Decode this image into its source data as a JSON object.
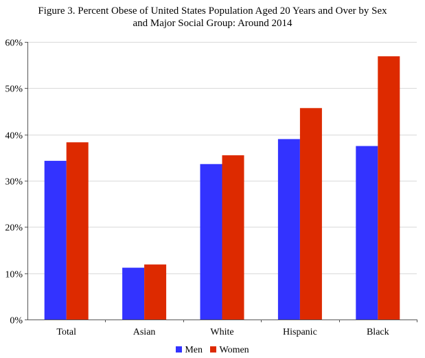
{
  "chart_data": {
    "type": "bar",
    "title_lines": [
      "Figure 3. Percent Obese of United States Population Aged 20 Years and Over by Sex",
      "and Major Social Group: Around 2014"
    ],
    "categories": [
      "Total",
      "Asian",
      "White",
      "Hispanic",
      "Black"
    ],
    "series": [
      {
        "name": "Men",
        "color": "#3333ff",
        "values": [
          34.3,
          11.2,
          33.6,
          39.0,
          37.5
        ]
      },
      {
        "name": "Women",
        "color": "#dd2a00",
        "values": [
          38.3,
          11.9,
          35.5,
          45.7,
          56.9
        ]
      }
    ],
    "ylim": [
      0,
      60
    ],
    "yticks": [
      0,
      10,
      20,
      30,
      40,
      50,
      60
    ],
    "ytick_labels": [
      "0%",
      "10%",
      "20%",
      "30%",
      "40%",
      "50%",
      "60%"
    ],
    "grid": true,
    "legend_position": "bottom"
  }
}
